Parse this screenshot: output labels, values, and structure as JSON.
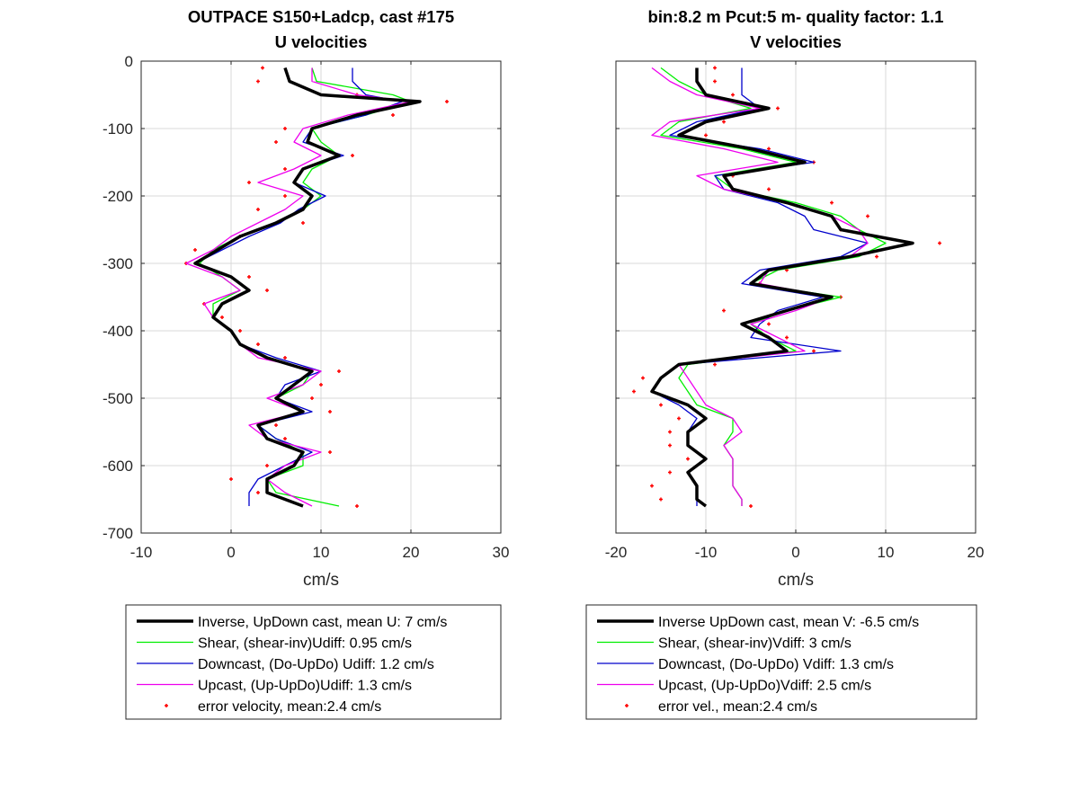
{
  "colors": {
    "inverse": "#000000",
    "shear": "#00ee00",
    "downcast": "#0000cc",
    "upcast": "#ee00ee",
    "error": "#ff0000"
  },
  "chart_data": [
    {
      "type": "line",
      "title": "OUTPACE S150+Ladcp, cast #175",
      "subtitle": "U velocities",
      "xlabel": "cm/s",
      "ylabel": "",
      "xlim": [
        -10,
        30
      ],
      "ylim": [
        -700,
        0
      ],
      "xticks": [
        -10,
        0,
        10,
        20,
        30
      ],
      "yticks": [
        0,
        -100,
        -200,
        -300,
        -400,
        -500,
        -600,
        -700
      ],
      "grid": true,
      "legend": "below",
      "y": [
        -10,
        -30,
        -50,
        -60,
        -80,
        -100,
        -120,
        -140,
        -160,
        -180,
        -200,
        -220,
        -240,
        -260,
        -280,
        -300,
        -320,
        -340,
        -360,
        -380,
        -400,
        -420,
        -440,
        -460,
        -480,
        -500,
        -520,
        -540,
        -560,
        -580,
        -600,
        -620,
        -640,
        -660
      ],
      "series": [
        {
          "name": "Inverse, UpDown cast, mean U:  7 cm/s",
          "key": "inverse",
          "values": [
            6,
            6.5,
            10,
            21,
            14,
            9,
            8.5,
            12,
            8,
            7,
            9,
            8,
            5,
            1,
            -1.5,
            -4,
            0,
            2,
            -1,
            -2,
            0,
            1,
            4,
            9,
            7,
            5,
            8,
            3,
            4,
            8,
            7,
            4,
            4,
            8
          ]
        },
        {
          "name": "Shear, (shear-inv)Udiff:  0.95 cm/s",
          "key": "shear",
          "values": [
            9,
            9.5,
            18,
            20,
            15,
            9,
            10,
            12,
            9,
            8,
            10,
            8,
            5,
            1,
            -2,
            -3.5,
            -1,
            1,
            -2,
            -2,
            0,
            1,
            4,
            9,
            8,
            5,
            8,
            3,
            5,
            8,
            8,
            4,
            5,
            12
          ]
        },
        {
          "name": "Downcast, (Do-UpDo) Udiff:  1.2 cm/s",
          "key": "downcast",
          "values": [
            13.5,
            13.5,
            15,
            19,
            15,
            9,
            8,
            12.5,
            8,
            7,
            10.5,
            7.5,
            5.5,
            2,
            -1,
            -4,
            0,
            2,
            -1,
            -2,
            0,
            1,
            5,
            10,
            6,
            5,
            9,
            3,
            5,
            9,
            6,
            3,
            2,
            2
          ]
        },
        {
          "name": "Upcast, (Up-UpDo)Udiff:  1.3 cm/s",
          "key": "upcast",
          "values": [
            9,
            9,
            14,
            20,
            13,
            8,
            7,
            10,
            7,
            3,
            8,
            6,
            3,
            0,
            -2,
            -5,
            -1,
            1,
            -3,
            -2,
            0,
            1,
            3,
            10,
            8,
            4,
            8,
            2,
            4,
            10,
            6,
            4,
            6,
            9
          ]
        },
        {
          "name": "error velocity, mean:2.4 cm/s",
          "key": "error",
          "mode": "markers",
          "values": [
            3.5,
            3,
            14,
            24,
            18,
            6,
            5,
            13.5,
            6,
            2,
            6,
            3,
            8,
            1,
            -4,
            -5,
            2,
            4,
            -3,
            -1,
            1,
            3,
            6,
            12,
            10,
            9,
            11,
            5,
            6,
            11,
            4,
            0,
            3,
            14
          ]
        }
      ]
    },
    {
      "type": "line",
      "title": "bin:8.2 m  Pcut:5 m- quality factor:  1.1",
      "subtitle": "V velocities",
      "xlabel": "cm/s",
      "ylabel": "",
      "xlim": [
        -20,
        20
      ],
      "ylim": [
        -700,
        0
      ],
      "xticks": [
        -20,
        -10,
        0,
        10,
        20
      ],
      "yticks": [
        0,
        -100,
        -200,
        -300,
        -400,
        -500,
        -600,
        -700
      ],
      "grid": true,
      "legend": "below",
      "y": [
        -10,
        -30,
        -50,
        -70,
        -90,
        -110,
        -130,
        -150,
        -170,
        -190,
        -210,
        -230,
        -250,
        -270,
        -290,
        -310,
        -330,
        -350,
        -370,
        -390,
        -410,
        -430,
        -450,
        -470,
        -490,
        -510,
        -530,
        -550,
        -570,
        -590,
        -610,
        -630,
        -650,
        -660
      ],
      "series": [
        {
          "name": "Inverse UpDown cast, mean V:  -6.5 cm/s",
          "key": "inverse",
          "values": [
            -11,
            -11,
            -10,
            -3,
            -10,
            -13,
            -5,
            1,
            -8,
            -7,
            -1,
            4,
            5,
            13,
            6,
            -3,
            -5,
            4,
            -1,
            -6,
            -3,
            -1,
            -13,
            -15,
            -16,
            -12,
            -10,
            -12,
            -12,
            -10,
            -12,
            -11,
            -11,
            -10
          ]
        },
        {
          "name": "Shear, (shear-inv)Vdiff:  3 cm/s",
          "key": "shear",
          "values": [
            -15,
            -13,
            -10,
            -5,
            -13,
            -15,
            -6,
            0,
            -9,
            -7,
            0,
            5,
            7,
            10,
            7,
            -2,
            -5,
            5,
            -1,
            -5,
            -3,
            0,
            -12,
            -13,
            -12,
            -11,
            -7,
            -7,
            -8,
            -7,
            -7,
            -7,
            -6,
            -6
          ]
        },
        {
          "name": "Downcast, (Do-UpDo) Vdiff:  1.3 cm/s",
          "key": "downcast",
          "values": [
            -6,
            -6,
            -6,
            -4,
            -11,
            -14,
            -4,
            2,
            -9,
            -8,
            -2,
            1,
            2,
            8,
            5,
            -4,
            -6,
            3,
            -2,
            -4,
            -5,
            5,
            -13,
            -15,
            -16,
            -13,
            -11,
            -12,
            -12,
            -10,
            -12,
            -11,
            -11,
            -11
          ]
        },
        {
          "name": "Upcast, (Up-UpDo)Vdiff:  2.5 cm/s",
          "key": "upcast",
          "values": [
            -16,
            -14,
            -11,
            -4,
            -14,
            -16,
            -8,
            -2,
            -11,
            -8,
            -1,
            4,
            7,
            8,
            6,
            -3,
            -4,
            4,
            0,
            -5,
            -2,
            1,
            -13,
            -12,
            -11,
            -10,
            -7,
            -6,
            -8,
            -7,
            -7,
            -7,
            -6,
            -6
          ]
        },
        {
          "name": "error vel., mean:2.4 cm/s",
          "key": "error",
          "mode": "markers",
          "values": [
            -9,
            -9,
            -7,
            -2,
            -8,
            -10,
            -3,
            2,
            -7,
            -3,
            4,
            8,
            5,
            16,
            9,
            -1,
            -4,
            5,
            -8,
            -3,
            -1,
            2,
            -9,
            -17,
            -18,
            -15,
            -13,
            -14,
            -14,
            -12,
            -14,
            -16,
            -15,
            -5
          ]
        }
      ]
    }
  ]
}
